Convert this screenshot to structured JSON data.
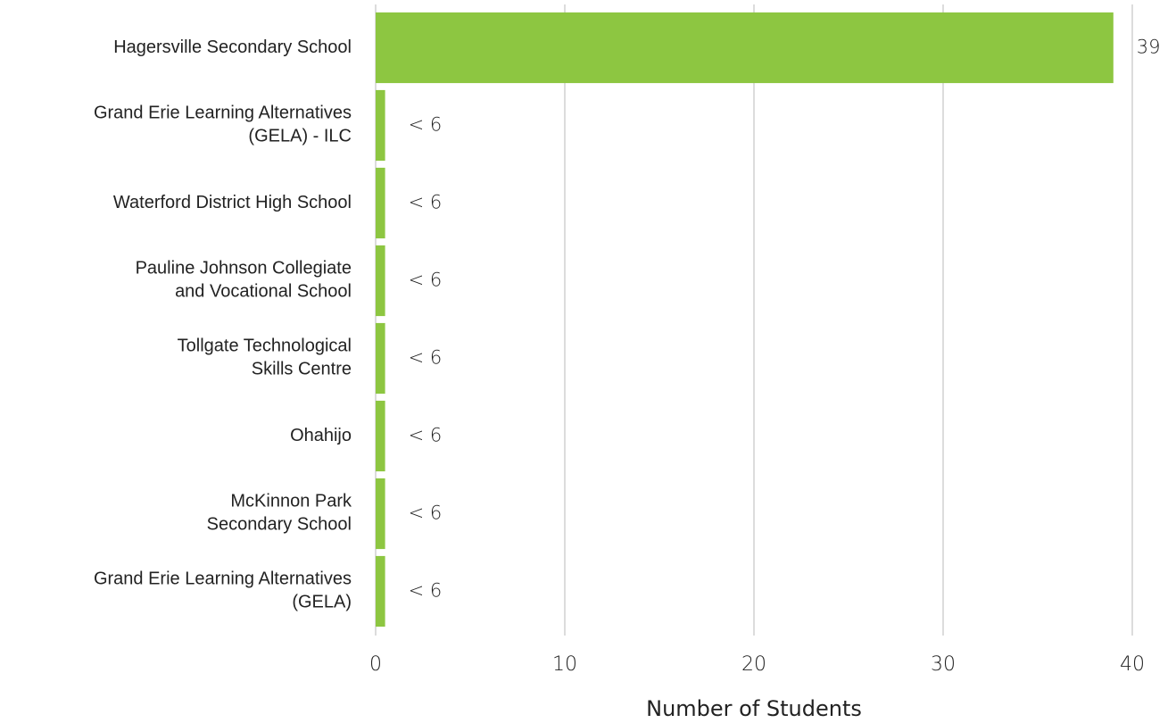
{
  "chart_data": {
    "type": "barh",
    "categories": [
      "Hagersville Secondary School",
      "Grand Erie Learning Alternatives\n(GELA) - ILC",
      "Waterford District High School",
      "Pauline Johnson Collegiate\nand Vocational School",
      "Tollgate Technological\nSkills Centre",
      "Ohahijo",
      "McKinnon Park\nSecondary School",
      "Grand Erie Learning Alternatives\n(GELA)"
    ],
    "values": [
      39,
      0.5,
      0.5,
      0.5,
      0.5,
      0.5,
      0.5,
      0.5
    ],
    "value_labels": [
      "39",
      "< 6",
      "< 6",
      "< 6",
      "< 6",
      "< 6",
      "< 6",
      "< 6"
    ],
    "color": "#8dc641",
    "xlabel": "Number of Students",
    "xlim": [
      0,
      40
    ],
    "xticks": [
      0,
      10,
      20,
      30,
      40
    ],
    "grid": true
  }
}
